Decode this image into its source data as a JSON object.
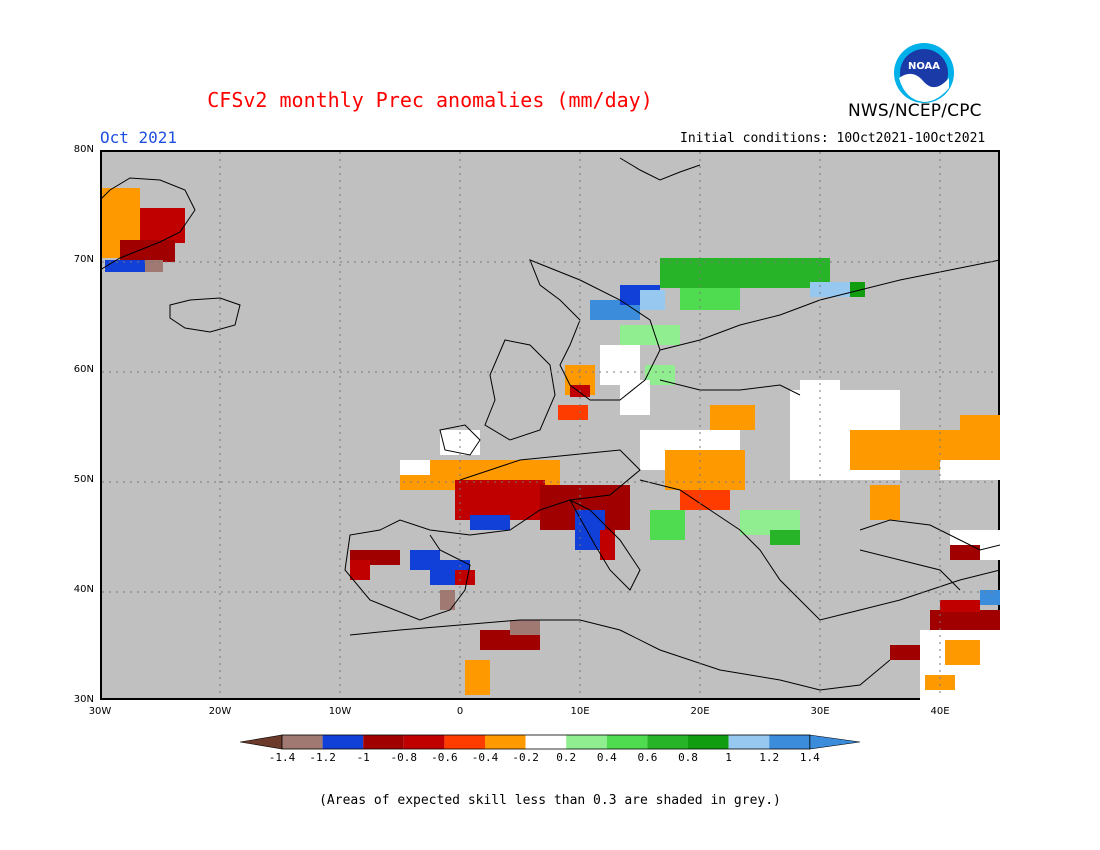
{
  "header": {
    "title": "CFSv2 monthly Prec anomalies (mm/day)",
    "organization": "NWS/NCEP/CPC",
    "logo_text": "NOAA",
    "month_label": "Oct 2021",
    "initial_conditions": "Initial conditions: 10Oct2021-10Oct2021"
  },
  "map": {
    "lat_labels": [
      "80N",
      "70N",
      "60N",
      "50N",
      "40N",
      "30N"
    ],
    "lon_labels": [
      "30W",
      "20W",
      "10W",
      "0",
      "10E",
      "20E",
      "30E",
      "40E"
    ],
    "extent": {
      "lon": [
        -30,
        45
      ],
      "lat": [
        30,
        80
      ]
    },
    "masked_color": "#c0c0c0"
  },
  "colorbar": {
    "ticks": [
      "-1.4",
      "-1.2",
      "-1",
      "-0.8",
      "-0.6",
      "-0.4",
      "-0.2",
      "0.2",
      "0.4",
      "0.6",
      "0.8",
      "1",
      "1.2",
      "1.4"
    ],
    "colors": [
      "#6b3a2a",
      "#a07a72",
      "#1040d8",
      "#a00000",
      "#c00000",
      "#ff3c00",
      "#ff9900",
      "#ffffff",
      "#90ee90",
      "#50dc50",
      "#28b428",
      "#109e10",
      "#96c8f0",
      "#3c8cdc",
      "#3c8cdc"
    ]
  },
  "footnote": "(Areas of expected skill less than 0.3 are shaded in grey.)"
}
